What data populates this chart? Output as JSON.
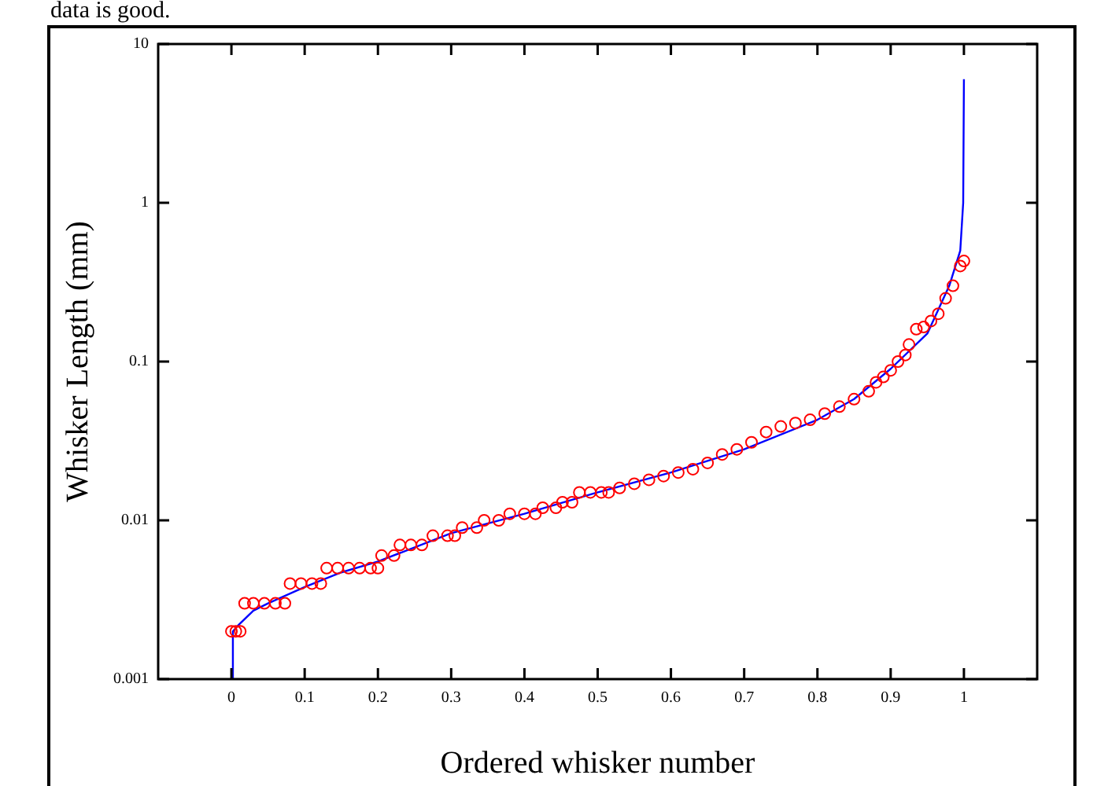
{
  "chart_data": {
    "type": "scatter",
    "xlabel": "Ordered whisker number",
    "ylabel": "Whisker Length (mm)",
    "annotations": [
      "data is good."
    ],
    "log": "y",
    "grid": false,
    "legend": false,
    "xlim": [
      -0.1,
      1.1
    ],
    "xticks": [
      0,
      0.1,
      0.2,
      0.3,
      0.4,
      0.5,
      0.6,
      0.7,
      0.8,
      0.9,
      1
    ],
    "ylim": [
      0.001,
      10
    ],
    "yticks": [
      0.001,
      0.01,
      0.1,
      1,
      10
    ],
    "series": [
      {
        "type": "scatter",
        "marker": "circle",
        "color": "#ff0000",
        "x": [
          0,
          0.006,
          0.012,
          0.018,
          0.03,
          0.045,
          0.06,
          0.073,
          0.08,
          0.095,
          0.11,
          0.122,
          0.13,
          0.145,
          0.16,
          0.175,
          0.19,
          0.2,
          0.205,
          0.222,
          0.23,
          0.245,
          0.26,
          0.275,
          0.295,
          0.305,
          0.315,
          0.335,
          0.345,
          0.365,
          0.38,
          0.4,
          0.415,
          0.425,
          0.443,
          0.452,
          0.465,
          0.475,
          0.49,
          0.505,
          0.515,
          0.53,
          0.55,
          0.57,
          0.59,
          0.61,
          0.63,
          0.65,
          0.67,
          0.69,
          0.71,
          0.73,
          0.75,
          0.77,
          0.79,
          0.81,
          0.83,
          0.85,
          0.87,
          0.88,
          0.89,
          0.9,
          0.91,
          0.92,
          0.925,
          0.935,
          0.945,
          0.955,
          0.965,
          0.975,
          0.985,
          0.995,
          1.0
        ],
        "values": [
          0.002,
          0.002,
          0.002,
          0.003,
          0.003,
          0.003,
          0.003,
          0.003,
          0.004,
          0.004,
          0.004,
          0.004,
          0.005,
          0.005,
          0.005,
          0.005,
          0.005,
          0.005,
          0.006,
          0.006,
          0.007,
          0.007,
          0.007,
          0.008,
          0.008,
          0.008,
          0.009,
          0.009,
          0.01,
          0.01,
          0.011,
          0.011,
          0.011,
          0.012,
          0.012,
          0.013,
          0.013,
          0.015,
          0.015,
          0.015,
          0.015,
          0.016,
          0.017,
          0.018,
          0.019,
          0.02,
          0.021,
          0.023,
          0.026,
          0.028,
          0.031,
          0.036,
          0.039,
          0.041,
          0.043,
          0.047,
          0.052,
          0.058,
          0.065,
          0.074,
          0.08,
          0.088,
          0.1,
          0.11,
          0.128,
          0.16,
          0.165,
          0.18,
          0.2,
          0.25,
          0.3,
          0.4,
          0.43
        ]
      },
      {
        "type": "line",
        "marker": "none",
        "line_style": "solid",
        "color": "#0000ff",
        "x": [
          0,
          0.002,
          0.01,
          0.03,
          0.05,
          0.1,
          0.15,
          0.2,
          0.3,
          0.4,
          0.5,
          0.6,
          0.7,
          0.8,
          0.85,
          0.9,
          0.95,
          0.98,
          0.995,
          0.999,
          1.0
        ],
        "values": [
          0.001,
          0.002,
          0.0022,
          0.0027,
          0.003,
          0.0038,
          0.0047,
          0.0055,
          0.0083,
          0.011,
          0.015,
          0.02,
          0.028,
          0.043,
          0.058,
          0.09,
          0.15,
          0.3,
          0.5,
          1.0,
          6.0
        ]
      }
    ]
  }
}
